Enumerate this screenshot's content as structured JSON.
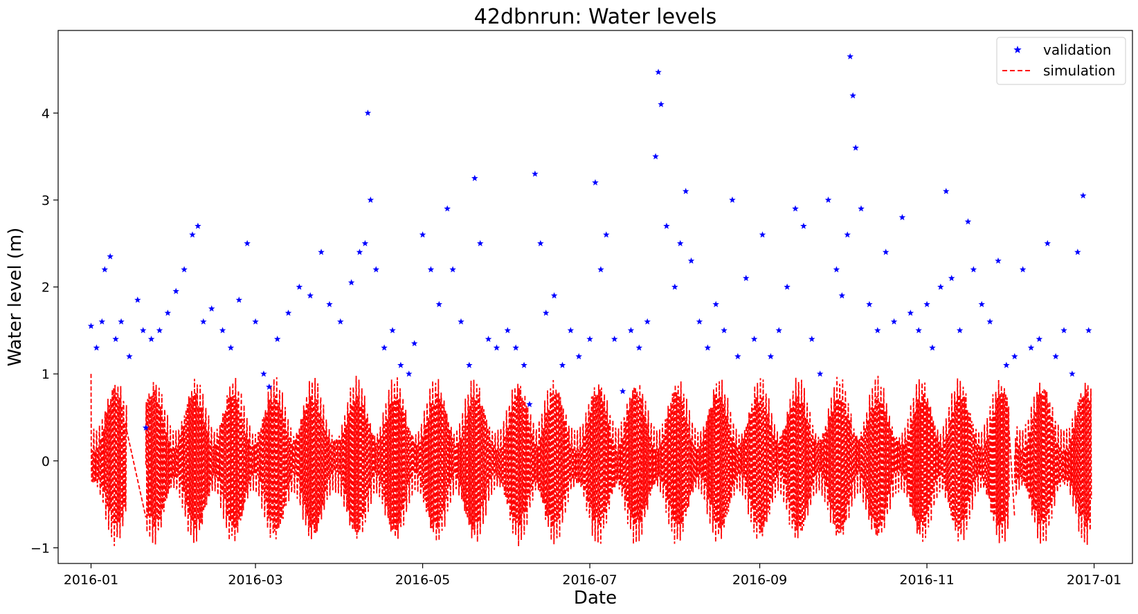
{
  "chart_data": {
    "type": "line",
    "title": "42dbnrun: Water levels",
    "xlabel": "Date",
    "ylabel": "Water level (m)",
    "x_axis": {
      "type": "date",
      "range": [
        "2015-12-20",
        "2017-01-15"
      ],
      "ticks": [
        {
          "date": "2016-01-01",
          "label": "2016-01"
        },
        {
          "date": "2016-03-01",
          "label": "2016-03"
        },
        {
          "date": "2016-05-01",
          "label": "2016-05"
        },
        {
          "date": "2016-07-01",
          "label": "2016-07"
        },
        {
          "date": "2016-09-01",
          "label": "2016-09"
        },
        {
          "date": "2016-11-01",
          "label": "2016-11"
        },
        {
          "date": "2017-01-01",
          "label": "2017-01"
        }
      ]
    },
    "y_axis": {
      "range": [
        -1.18,
        4.95
      ],
      "ticks": [
        {
          "value": -1,
          "label": "−1"
        },
        {
          "value": 0,
          "label": "0"
        },
        {
          "value": 1,
          "label": "1"
        },
        {
          "value": 2,
          "label": "2"
        },
        {
          "value": 3,
          "label": "3"
        },
        {
          "value": 4,
          "label": "4"
        }
      ]
    },
    "grid": false,
    "legend_position": "top-right",
    "series": [
      {
        "name": "validation",
        "style": "star-markers",
        "color": "#0000ff",
        "points": [
          [
            "2016-01-01",
            1.55
          ],
          [
            "2016-01-03",
            1.3
          ],
          [
            "2016-01-05",
            1.6
          ],
          [
            "2016-01-06",
            2.2
          ],
          [
            "2016-01-08",
            2.35
          ],
          [
            "2016-01-10",
            1.4
          ],
          [
            "2016-01-12",
            1.6
          ],
          [
            "2016-01-15",
            1.2
          ],
          [
            "2016-01-18",
            1.85
          ],
          [
            "2016-01-20",
            1.5
          ],
          [
            "2016-01-21",
            0.38
          ],
          [
            "2016-01-23",
            1.4
          ],
          [
            "2016-01-26",
            1.5
          ],
          [
            "2016-01-29",
            1.7
          ],
          [
            "2016-02-01",
            1.95
          ],
          [
            "2016-02-04",
            2.2
          ],
          [
            "2016-02-07",
            2.6
          ],
          [
            "2016-02-09",
            2.7
          ],
          [
            "2016-02-11",
            1.6
          ],
          [
            "2016-02-14",
            1.75
          ],
          [
            "2016-02-18",
            1.5
          ],
          [
            "2016-02-21",
            1.3
          ],
          [
            "2016-02-24",
            1.85
          ],
          [
            "2016-02-27",
            2.5
          ],
          [
            "2016-03-01",
            1.6
          ],
          [
            "2016-03-04",
            1.0
          ],
          [
            "2016-03-06",
            0.85
          ],
          [
            "2016-03-09",
            1.4
          ],
          [
            "2016-03-13",
            1.7
          ],
          [
            "2016-03-17",
            2.0
          ],
          [
            "2016-03-21",
            1.9
          ],
          [
            "2016-03-25",
            2.4
          ],
          [
            "2016-03-28",
            1.8
          ],
          [
            "2016-04-01",
            1.6
          ],
          [
            "2016-04-05",
            2.05
          ],
          [
            "2016-04-08",
            2.4
          ],
          [
            "2016-04-10",
            2.5
          ],
          [
            "2016-04-11",
            4.0
          ],
          [
            "2016-04-12",
            3.0
          ],
          [
            "2016-04-14",
            2.2
          ],
          [
            "2016-04-17",
            1.3
          ],
          [
            "2016-04-20",
            1.5
          ],
          [
            "2016-04-23",
            1.1
          ],
          [
            "2016-04-26",
            1.0
          ],
          [
            "2016-04-28",
            1.35
          ],
          [
            "2016-05-01",
            2.6
          ],
          [
            "2016-05-04",
            2.2
          ],
          [
            "2016-05-07",
            1.8
          ],
          [
            "2016-05-10",
            2.9
          ],
          [
            "2016-05-12",
            2.2
          ],
          [
            "2016-05-15",
            1.6
          ],
          [
            "2016-05-18",
            1.1
          ],
          [
            "2016-05-20",
            3.25
          ],
          [
            "2016-05-22",
            2.5
          ],
          [
            "2016-05-25",
            1.4
          ],
          [
            "2016-05-28",
            1.3
          ],
          [
            "2016-06-01",
            1.5
          ],
          [
            "2016-06-04",
            1.3
          ],
          [
            "2016-06-07",
            1.1
          ],
          [
            "2016-06-09",
            0.65
          ],
          [
            "2016-06-11",
            3.3
          ],
          [
            "2016-06-13",
            2.5
          ],
          [
            "2016-06-15",
            1.7
          ],
          [
            "2016-06-18",
            1.9
          ],
          [
            "2016-06-21",
            1.1
          ],
          [
            "2016-06-24",
            1.5
          ],
          [
            "2016-06-27",
            1.2
          ],
          [
            "2016-07-01",
            1.4
          ],
          [
            "2016-07-03",
            3.2
          ],
          [
            "2016-07-05",
            2.2
          ],
          [
            "2016-07-07",
            2.6
          ],
          [
            "2016-07-10",
            1.4
          ],
          [
            "2016-07-13",
            0.8
          ],
          [
            "2016-07-16",
            1.5
          ],
          [
            "2016-07-19",
            1.3
          ],
          [
            "2016-07-22",
            1.6
          ],
          [
            "2016-07-25",
            3.5
          ],
          [
            "2016-07-26",
            4.47
          ],
          [
            "2016-07-27",
            4.1
          ],
          [
            "2016-07-29",
            2.7
          ],
          [
            "2016-08-01",
            2.0
          ],
          [
            "2016-08-03",
            2.5
          ],
          [
            "2016-08-05",
            3.1
          ],
          [
            "2016-08-07",
            2.3
          ],
          [
            "2016-08-10",
            1.6
          ],
          [
            "2016-08-13",
            1.3
          ],
          [
            "2016-08-16",
            1.8
          ],
          [
            "2016-08-19",
            1.5
          ],
          [
            "2016-08-22",
            3.0
          ],
          [
            "2016-08-24",
            1.2
          ],
          [
            "2016-08-27",
            2.1
          ],
          [
            "2016-08-30",
            1.4
          ],
          [
            "2016-09-02",
            2.6
          ],
          [
            "2016-09-05",
            1.2
          ],
          [
            "2016-09-08",
            1.5
          ],
          [
            "2016-09-11",
            2.0
          ],
          [
            "2016-09-14",
            2.9
          ],
          [
            "2016-09-17",
            2.7
          ],
          [
            "2016-09-20",
            1.4
          ],
          [
            "2016-09-23",
            1.0
          ],
          [
            "2016-09-26",
            3.0
          ],
          [
            "2016-09-29",
            2.2
          ],
          [
            "2016-10-01",
            1.9
          ],
          [
            "2016-10-03",
            2.6
          ],
          [
            "2016-10-04",
            4.65
          ],
          [
            "2016-10-05",
            4.2
          ],
          [
            "2016-10-06",
            3.6
          ],
          [
            "2016-10-08",
            2.9
          ],
          [
            "2016-10-11",
            1.8
          ],
          [
            "2016-10-14",
            1.5
          ],
          [
            "2016-10-17",
            2.4
          ],
          [
            "2016-10-20",
            1.6
          ],
          [
            "2016-10-23",
            2.8
          ],
          [
            "2016-10-26",
            1.7
          ],
          [
            "2016-10-29",
            1.5
          ],
          [
            "2016-11-01",
            1.8
          ],
          [
            "2016-11-03",
            1.3
          ],
          [
            "2016-11-06",
            2.0
          ],
          [
            "2016-11-08",
            3.1
          ],
          [
            "2016-11-10",
            2.1
          ],
          [
            "2016-11-13",
            1.5
          ],
          [
            "2016-11-16",
            2.75
          ],
          [
            "2016-11-18",
            2.2
          ],
          [
            "2016-11-21",
            1.8
          ],
          [
            "2016-11-24",
            1.6
          ],
          [
            "2016-11-27",
            2.3
          ],
          [
            "2016-11-30",
            1.1
          ],
          [
            "2016-12-03",
            1.2
          ],
          [
            "2016-12-06",
            2.2
          ],
          [
            "2016-12-09",
            1.3
          ],
          [
            "2016-12-12",
            1.4
          ],
          [
            "2016-12-15",
            2.5
          ],
          [
            "2016-12-18",
            1.2
          ],
          [
            "2016-12-21",
            1.5
          ],
          [
            "2016-12-24",
            1.0
          ],
          [
            "2016-12-26",
            2.4
          ],
          [
            "2016-12-28",
            3.05
          ],
          [
            "2016-12-30",
            1.5
          ]
        ]
      },
      {
        "name": "simulation",
        "style": "dashed-line",
        "color": "#ff0000",
        "start_value": 1.0,
        "mean": 0.0,
        "amplitude_max": 0.87,
        "amplitude_min": 0.25,
        "spring_neap_peaks": [
          "2016-01-10",
          "2016-01-24",
          "2016-02-08",
          "2016-02-22",
          "2016-03-08",
          "2016-03-22",
          "2016-04-07",
          "2016-04-21",
          "2016-05-06",
          "2016-05-20",
          "2016-06-05",
          "2016-06-18",
          "2016-07-04",
          "2016-07-18",
          "2016-08-02",
          "2016-08-17",
          "2016-09-01",
          "2016-09-15",
          "2016-09-30",
          "2016-10-14",
          "2016-10-30",
          "2016-11-13",
          "2016-11-28",
          "2016-12-13",
          "2016-12-29"
        ],
        "gaps": [
          [
            "2016-01-14",
            "2016-01-21"
          ],
          [
            "2016-12-01",
            "2016-12-03"
          ]
        ],
        "range": [
          "2016-01-01",
          "2016-12-31"
        ]
      }
    ]
  }
}
